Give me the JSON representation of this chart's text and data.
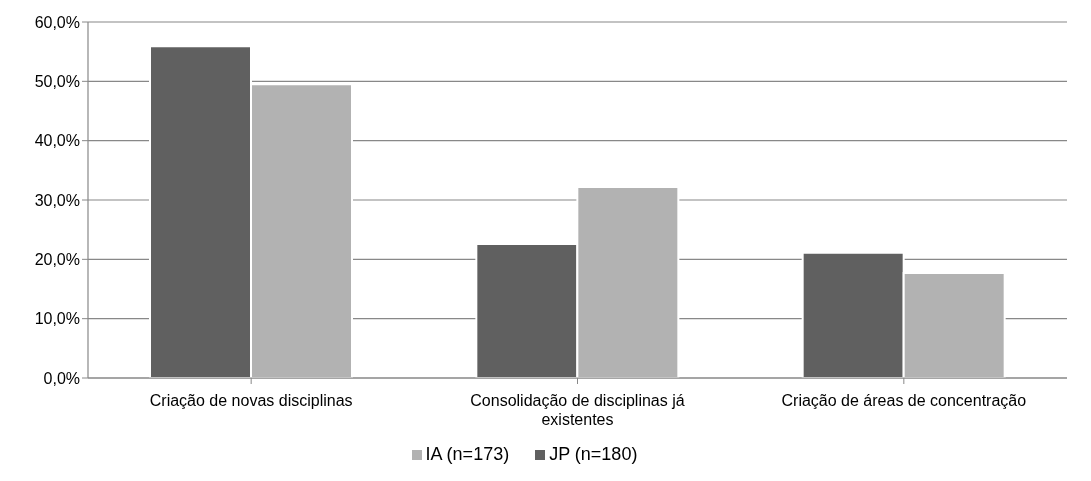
{
  "chart_data": {
    "type": "bar",
    "categories": [
      "Criação de novas disciplinas",
      "Consolidação de disciplinas já existentes",
      "Criação de áreas de concentração"
    ],
    "series": [
      {
        "name": "JP (n=180)",
        "color": "#606060",
        "values": [
          55.9,
          22.6,
          21.1
        ]
      },
      {
        "name": "IA (n=173)",
        "color": "#b2b2b2",
        "values": [
          49.5,
          32.2,
          17.7
        ]
      }
    ],
    "ylim": [
      0,
      60
    ],
    "yticks": [
      {
        "value": 0,
        "label": "0,0%"
      },
      {
        "value": 10,
        "label": "10,0%"
      },
      {
        "value": 20,
        "label": "20,0%"
      },
      {
        "value": 30,
        "label": "30,0%"
      },
      {
        "value": 40,
        "label": "40,0%"
      },
      {
        "value": 50,
        "label": "50,0%"
      },
      {
        "value": 60,
        "label": "60,0%"
      }
    ],
    "grid": "y",
    "legend": "bottom"
  }
}
